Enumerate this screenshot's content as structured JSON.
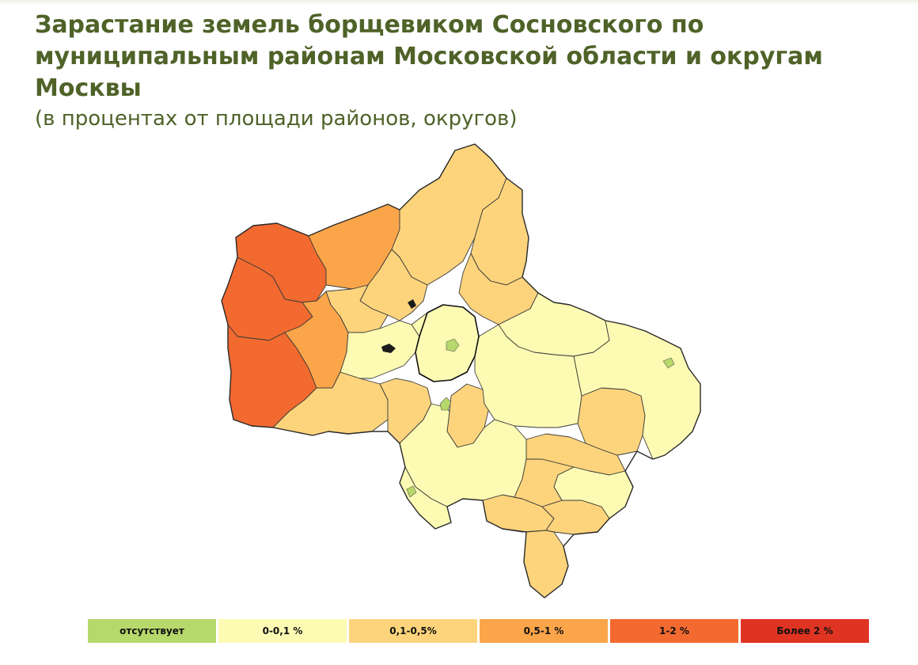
{
  "header": {
    "title": "Зарастание земель борщевиком Сосновского по муниципальным районам Московской области и округам Москвы",
    "subtitle": "(в процентах от площади районов, округов)"
  },
  "legend": [
    {
      "label": "отсутствует",
      "color": "#b7d86b"
    },
    {
      "label": "0-0,1 %",
      "color": "#fdfbb3"
    },
    {
      "label": "0,1-0,5%",
      "color": "#fdd47c"
    },
    {
      "label": "0,5-1 %",
      "color": "#fba54a"
    },
    {
      "label": "1-2 %",
      "color": "#f26a2f"
    },
    {
      "label": "Более 2 %",
      "color": "#e03423"
    }
  ]
}
